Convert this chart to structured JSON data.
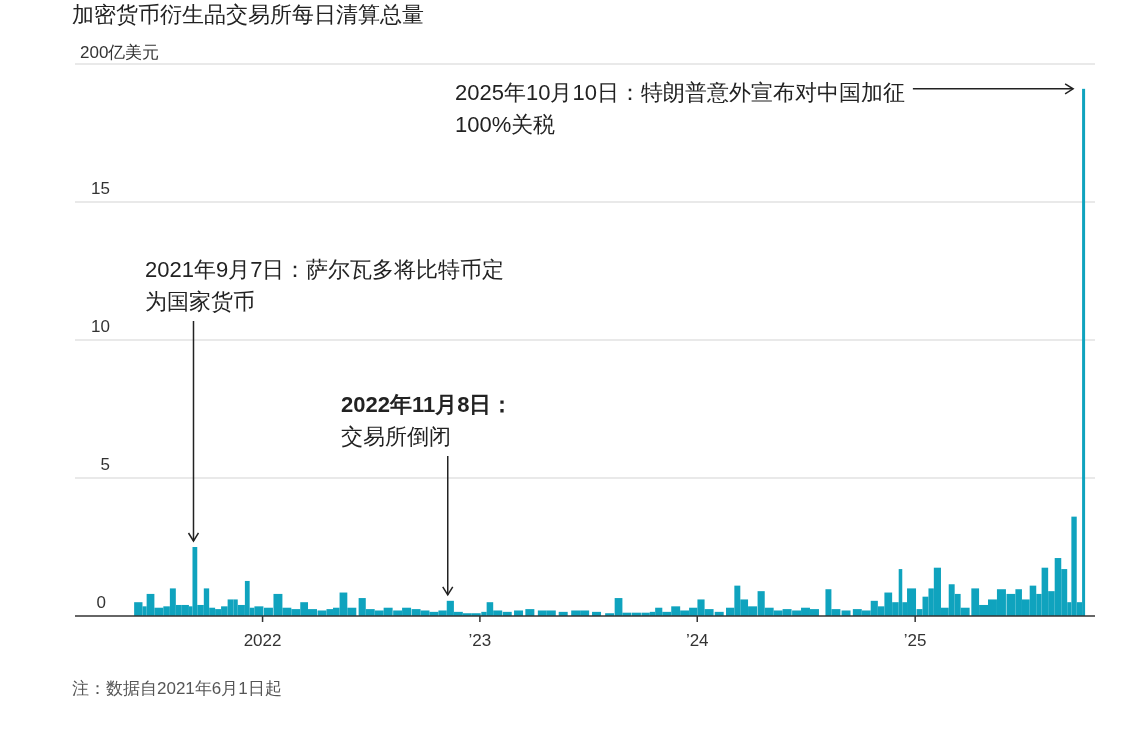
{
  "chart_data": {
    "type": "bar",
    "title": "加密货币衍生品交易所每日清算总量",
    "x": [
      "2021-06-01",
      "2021-06-15",
      "2021-06-22",
      "2021-07-05",
      "2021-07-20",
      "2021-07-31",
      "2021-08-10",
      "2021-08-20",
      "2021-09-01",
      "2021-09-07",
      "2021-09-15",
      "2021-09-26",
      "2021-10-05",
      "2021-10-15",
      "2021-10-25",
      "2021-11-05",
      "2021-11-15",
      "2021-11-22",
      "2021-12-04",
      "2021-12-12",
      "2021-12-20",
      "2022-01-05",
      "2022-01-21",
      "2022-02-05",
      "2022-02-20",
      "2022-03-07",
      "2022-03-20",
      "2022-04-05",
      "2022-04-20",
      "2022-05-01",
      "2022-05-12",
      "2022-05-25",
      "2022-06-13",
      "2022-06-25",
      "2022-07-10",
      "2022-07-25",
      "2022-08-10",
      "2022-08-25",
      "2022-09-10",
      "2022-09-25",
      "2022-10-10",
      "2022-10-25",
      "2022-11-08",
      "2022-11-20",
      "2022-12-05",
      "2022-12-20",
      "2023-01-05",
      "2023-01-14",
      "2023-01-25",
      "2023-02-10",
      "2023-03-01",
      "2023-03-20",
      "2023-04-10",
      "2023-04-25",
      "2023-05-15",
      "2023-06-05",
      "2023-06-20",
      "2023-07-10",
      "2023-08-01",
      "2023-08-17",
      "2023-08-30",
      "2023-09-15",
      "2023-10-01",
      "2023-10-15",
      "2023-10-24",
      "2023-11-05",
      "2023-11-20",
      "2023-12-05",
      "2023-12-20",
      "2024-01-03",
      "2024-01-15",
      "2024-02-01",
      "2024-02-20",
      "2024-03-05",
      "2024-03-15",
      "2024-03-28",
      "2024-04-13",
      "2024-04-25",
      "2024-05-10",
      "2024-05-25",
      "2024-06-10",
      "2024-06-25",
      "2024-07-10",
      "2024-08-05",
      "2024-08-15",
      "2024-09-01",
      "2024-09-20",
      "2024-10-05",
      "2024-10-20",
      "2024-11-01",
      "2024-11-12",
      "2024-11-25",
      "2024-12-06",
      "2024-12-12",
      "2024-12-20",
      "2025-01-05",
      "2025-01-15",
      "2025-01-25",
      "2025-02-03",
      "2025-02-15",
      "2025-02-28",
      "2025-03-10",
      "2025-03-20",
      "2025-04-07",
      "2025-04-20",
      "2025-05-05",
      "2025-05-20",
      "2025-06-05",
      "2025-06-20",
      "2025-07-01",
      "2025-07-14",
      "2025-07-25",
      "2025-08-03",
      "2025-08-14",
      "2025-08-25",
      "2025-09-05",
      "2025-09-15",
      "2025-09-22",
      "2025-10-01",
      "2025-10-10"
    ],
    "values": [
      0.5,
      0.35,
      0.8,
      0.3,
      0.35,
      1.0,
      0.4,
      0.4,
      0.35,
      2.5,
      0.4,
      1.0,
      0.3,
      0.25,
      0.35,
      0.6,
      0.6,
      0.4,
      1.27,
      0.3,
      0.35,
      0.3,
      0.8,
      0.3,
      0.25,
      0.5,
      0.25,
      0.2,
      0.25,
      0.3,
      0.85,
      0.3,
      0.65,
      0.25,
      0.2,
      0.3,
      0.2,
      0.3,
      0.25,
      0.2,
      0.15,
      0.2,
      0.55,
      0.15,
      0.1,
      0.1,
      0.15,
      0.5,
      0.2,
      0.15,
      0.2,
      0.25,
      0.2,
      0.2,
      0.15,
      0.2,
      0.2,
      0.15,
      0.1,
      0.65,
      0.12,
      0.12,
      0.12,
      0.15,
      0.3,
      0.15,
      0.35,
      0.2,
      0.3,
      0.6,
      0.25,
      0.15,
      0.3,
      1.1,
      0.6,
      0.35,
      0.9,
      0.3,
      0.2,
      0.25,
      0.2,
      0.3,
      0.25,
      0.97,
      0.25,
      0.2,
      0.25,
      0.2,
      0.55,
      0.35,
      0.85,
      0.5,
      1.7,
      0.5,
      1.0,
      0.25,
      0.7,
      1.0,
      1.75,
      0.3,
      1.15,
      0.8,
      0.3,
      1.0,
      0.4,
      0.6,
      0.97,
      0.8,
      0.97,
      0.6,
      1.1,
      0.8,
      1.75,
      0.9,
      2.1,
      1.7,
      0.5,
      3.6,
      0.5,
      19.1
    ],
    "color": "#0fa3be",
    "xlim": [
      "2021-02-20",
      "2025-10-30"
    ],
    "xticks": [
      {
        "value": "2022-01-01",
        "label": "2022"
      },
      {
        "value": "2023-01-01",
        "label": "’23"
      },
      {
        "value": "2024-01-01",
        "label": "’24"
      },
      {
        "value": "2025-01-01",
        "label": "’25"
      }
    ],
    "ylim": [
      0,
      20
    ],
    "yticks": [
      0,
      5,
      10,
      15,
      {
        "value": 20,
        "label": null
      }
    ],
    "ylabel": "200亿美元",
    "grid": "y",
    "annotations": [
      "2025年10月10日：特朗普意外宣布对中国加征100%关税",
      {
        "text": "2021年9月7日：萨尔瓦多将比特币定为国家货币",
        "x": "2021-09-07",
        "y": 2.5
      },
      {
        "text": "2022年11月8日：交易所倒闭",
        "x": "2022-11-08",
        "y": 0.55
      },
      "注：数据自2021年6月1日起"
    ]
  }
}
